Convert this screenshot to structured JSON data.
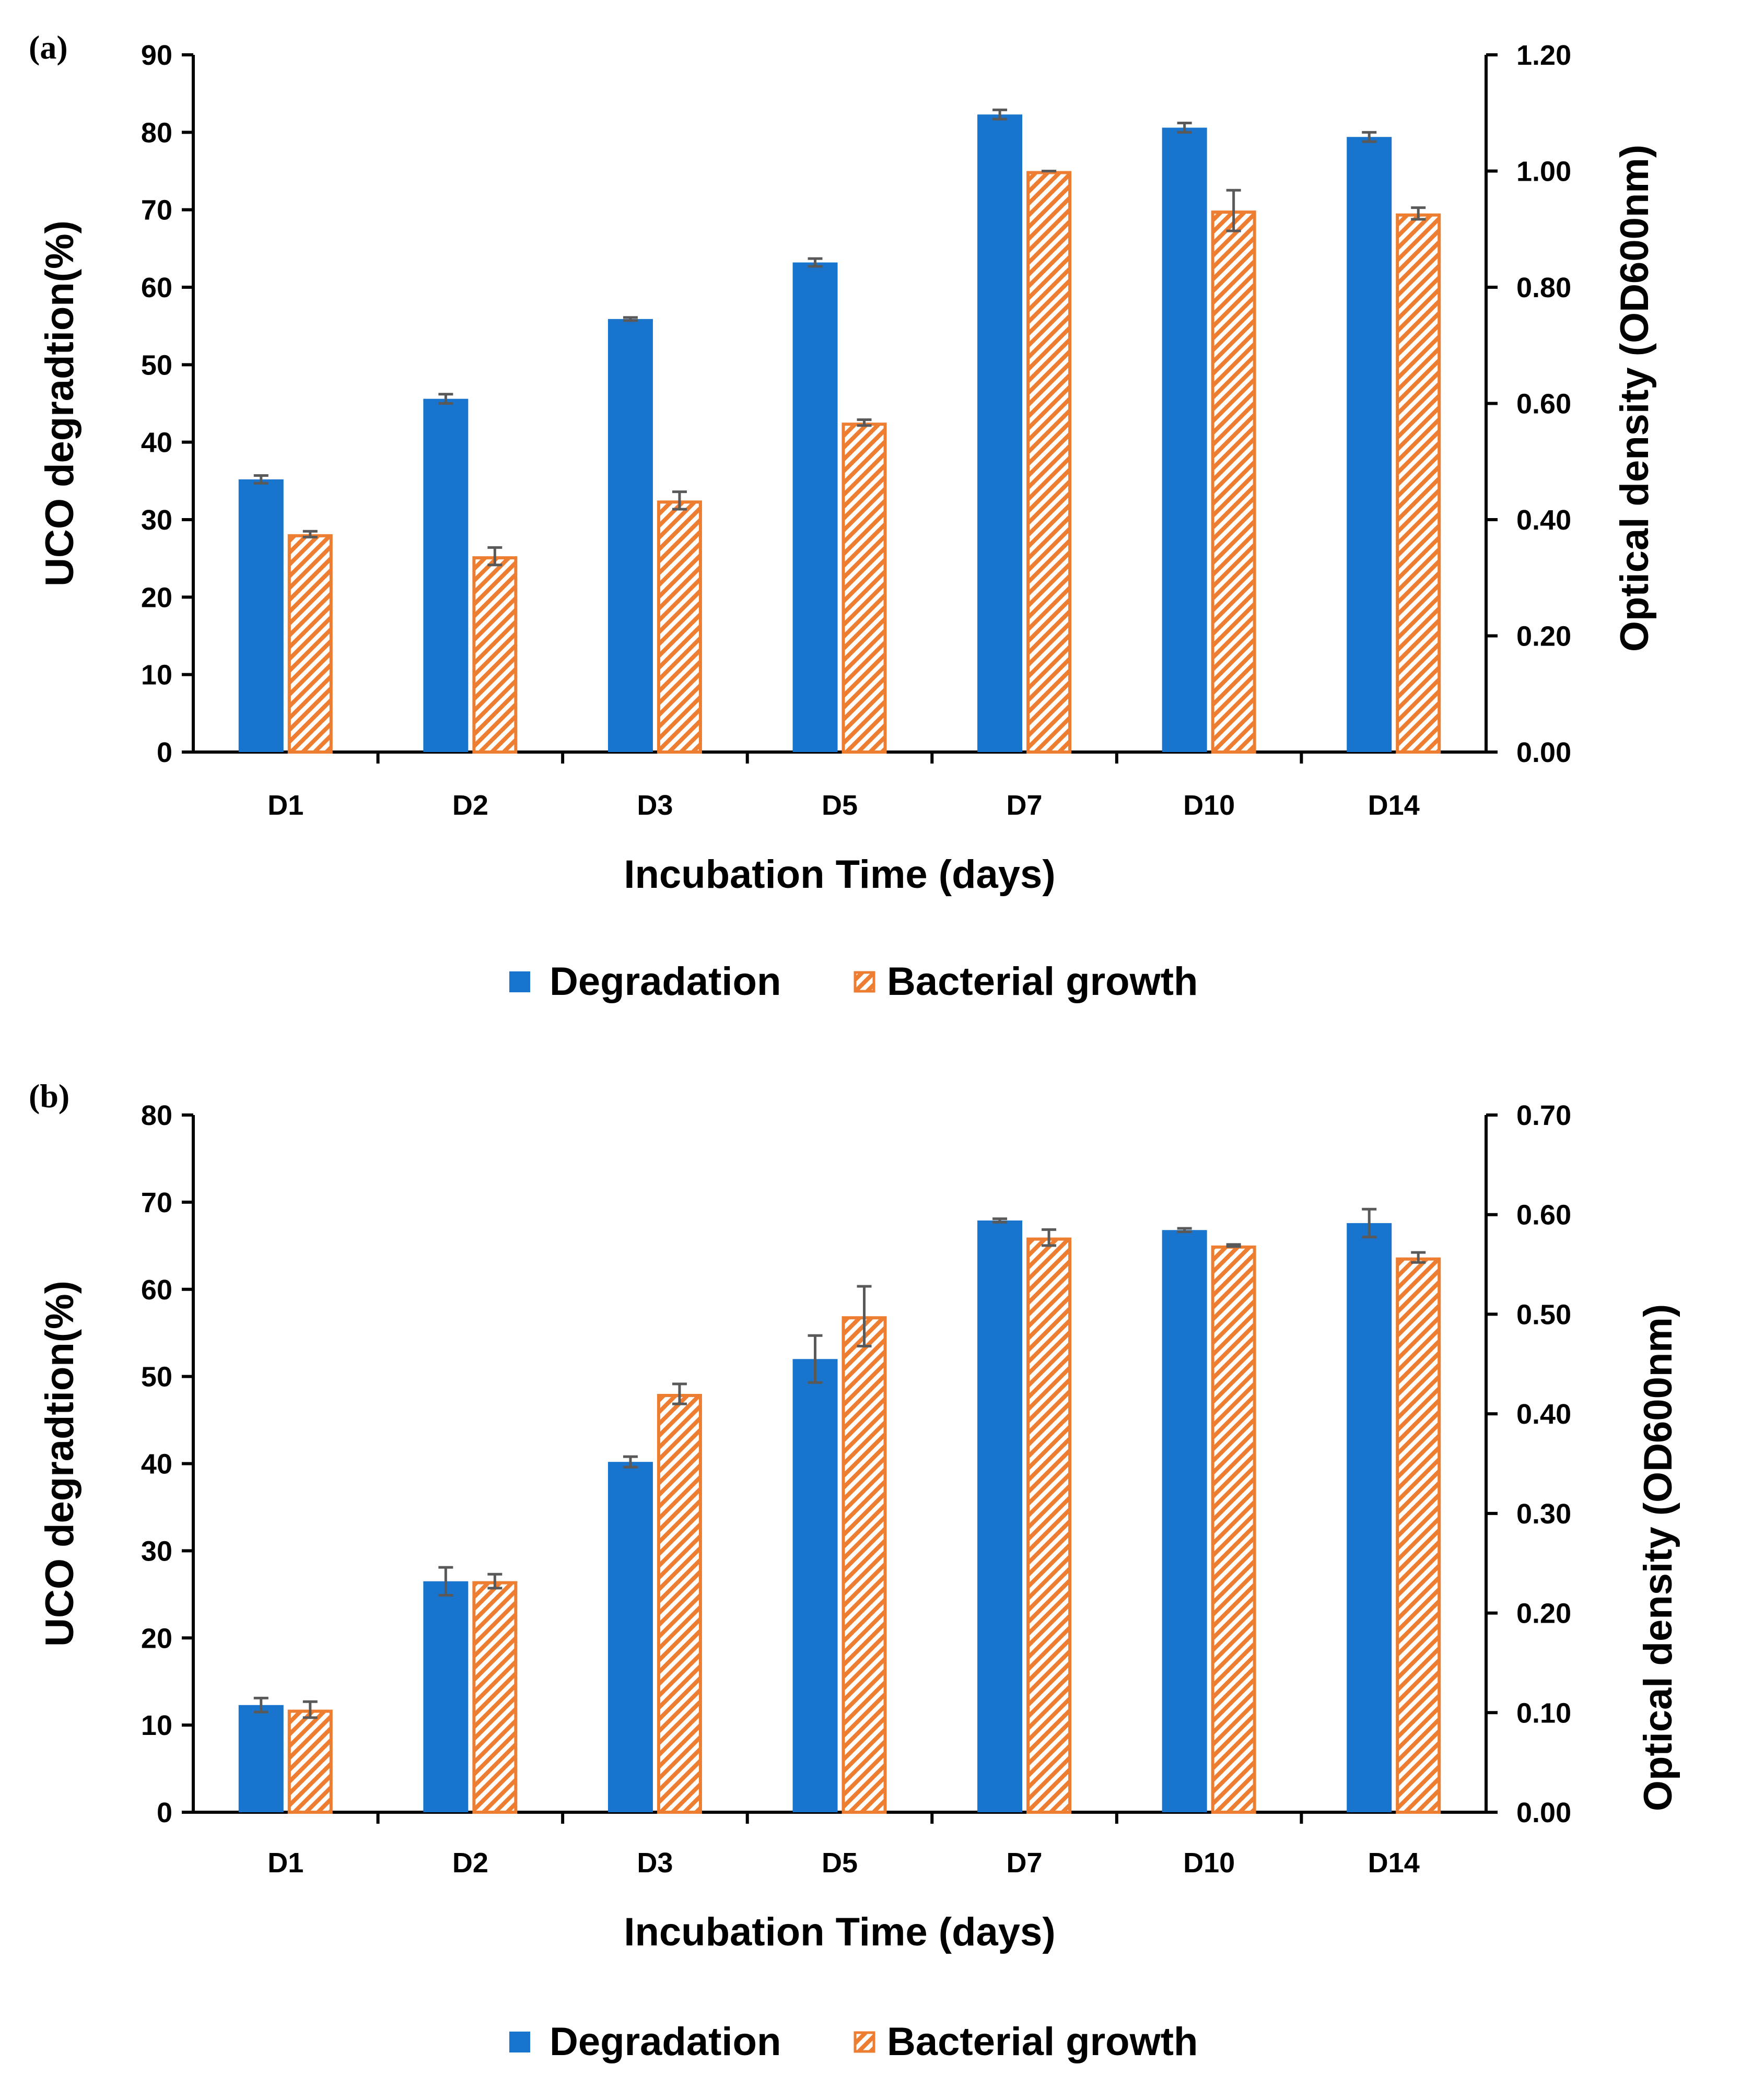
{
  "figure": {
    "colors": {
      "degradation": "#1874CD",
      "growth": "#ED7D31",
      "error": "#595959",
      "axis": "#000000"
    }
  },
  "chart_data": [
    {
      "panel_label": "(a)",
      "type": "bar",
      "categories": [
        "D1",
        "D2",
        "D3",
        "D5",
        "D7",
        "D10",
        "D14"
      ],
      "xlabel": "Incubation Time (days)",
      "ylabel": "UCO degradtion(%)",
      "y2label": "Optical density (OD600nm)",
      "ylim": [
        0,
        90
      ],
      "y_ticks": [
        "0",
        "10",
        "20",
        "30",
        "40",
        "50",
        "60",
        "70",
        "80",
        "90"
      ],
      "y2lim": [
        0,
        1.2
      ],
      "y2_ticks": [
        "0.00",
        "0.20",
        "0.40",
        "0.60",
        "0.80",
        "1.00",
        "1.20"
      ],
      "legend": {
        "position": "bottom"
      },
      "series": [
        {
          "name": "Degradation",
          "axis": "left",
          "style": "solid",
          "values": [
            35.2,
            45.6,
            55.9,
            63.2,
            82.3,
            80.6,
            79.4
          ],
          "errors": [
            0.5,
            0.6,
            0.2,
            0.5,
            0.6,
            0.6,
            0.6
          ]
        },
        {
          "name": "Bacterial growth",
          "axis": "right",
          "style": "hatched",
          "values": [
            0.375,
            0.337,
            0.433,
            0.567,
            1.0,
            0.932,
            0.927
          ],
          "errors": [
            0.005,
            0.015,
            0.015,
            0.005,
            0.0,
            0.035,
            0.01
          ]
        }
      ]
    },
    {
      "panel_label": "(b)",
      "type": "bar",
      "categories": [
        "D1",
        "D2",
        "D3",
        "D5",
        "D7",
        "D10",
        "D14"
      ],
      "xlabel": "Incubation Time (days)",
      "ylabel": "UCO degradtion(%)",
      "y2label": "Optical density  (OD600nm)",
      "ylim": [
        0,
        80
      ],
      "y_ticks": [
        "0",
        "10",
        "20",
        "30",
        "40",
        "50",
        "60",
        "70",
        "80"
      ],
      "y2lim": [
        0,
        0.7
      ],
      "y2_ticks": [
        "0.00",
        "0.10",
        "0.20",
        "0.30",
        "0.40",
        "0.50",
        "0.60",
        "0.70"
      ],
      "legend": {
        "position": "bottom"
      },
      "series": [
        {
          "name": "Degradation",
          "axis": "left",
          "style": "solid",
          "values": [
            12.3,
            26.5,
            40.2,
            52.0,
            67.9,
            66.8,
            67.6
          ],
          "errors": [
            0.8,
            1.6,
            0.6,
            2.7,
            0.2,
            0.2,
            1.6
          ]
        },
        {
          "name": "Bacterial growth",
          "axis": "right",
          "style": "hatched",
          "values": [
            0.103,
            0.232,
            0.42,
            0.498,
            0.577,
            0.569,
            0.557
          ],
          "errors": [
            0.008,
            0.007,
            0.01,
            0.03,
            0.008,
            0.001,
            0.005
          ]
        }
      ]
    }
  ]
}
